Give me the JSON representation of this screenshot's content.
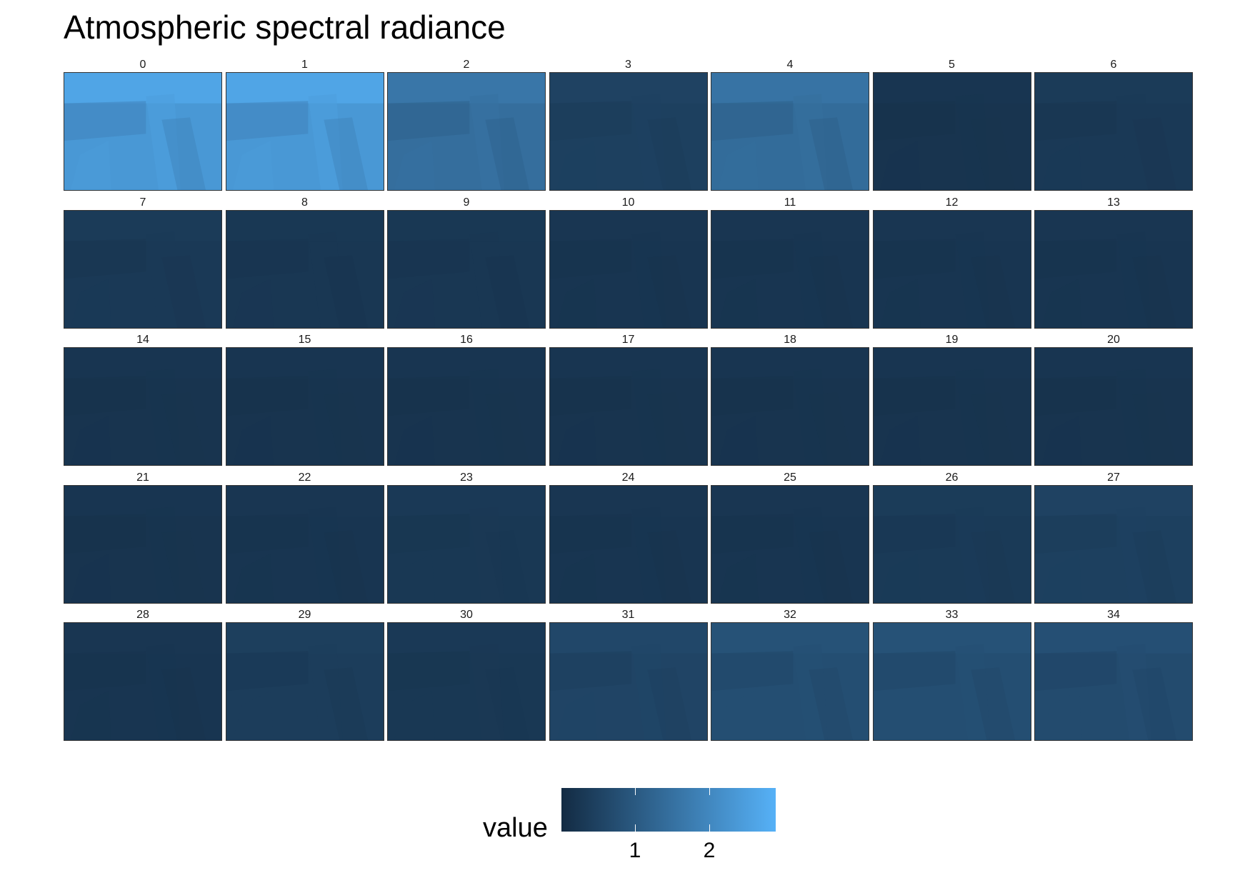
{
  "chart_data": {
    "type": "heatmap",
    "title": "Atmospheric spectral radiance",
    "panel_layout": {
      "columns": 7,
      "rows": 5
    },
    "panels": [
      {
        "label": "0",
        "level": 2.35
      },
      {
        "label": "1",
        "level": 2.35
      },
      {
        "label": "2",
        "level": 1.45
      },
      {
        "label": "3",
        "level": 0.45
      },
      {
        "label": "4",
        "level": 1.4
      },
      {
        "label": "5",
        "level": 0.2
      },
      {
        "label": "6",
        "level": 0.3
      },
      {
        "label": "7",
        "level": 0.3
      },
      {
        "label": "8",
        "level": 0.25
      },
      {
        "label": "9",
        "level": 0.25
      },
      {
        "label": "10",
        "level": 0.22
      },
      {
        "label": "11",
        "level": 0.22
      },
      {
        "label": "12",
        "level": 0.22
      },
      {
        "label": "13",
        "level": 0.22
      },
      {
        "label": "14",
        "level": 0.2
      },
      {
        "label": "15",
        "level": 0.2
      },
      {
        "label": "16",
        "level": 0.2
      },
      {
        "label": "17",
        "level": 0.2
      },
      {
        "label": "18",
        "level": 0.2
      },
      {
        "label": "19",
        "level": 0.2
      },
      {
        "label": "20",
        "level": 0.2
      },
      {
        "label": "21",
        "level": 0.2
      },
      {
        "label": "22",
        "level": 0.22
      },
      {
        "label": "23",
        "level": 0.28
      },
      {
        "label": "24",
        "level": 0.22
      },
      {
        "label": "25",
        "level": 0.22
      },
      {
        "label": "26",
        "level": 0.32
      },
      {
        "label": "27",
        "level": 0.45
      },
      {
        "label": "28",
        "level": 0.22
      },
      {
        "label": "29",
        "level": 0.38
      },
      {
        "label": "30",
        "level": 0.28
      },
      {
        "label": "31",
        "level": 0.55
      },
      {
        "label": "32",
        "level": 0.75
      },
      {
        "label": "33",
        "level": 0.75
      },
      {
        "label": "34",
        "level": 0.7
      }
    ],
    "legend": {
      "title": "value",
      "position": "bottom",
      "range": [
        0,
        2.9
      ],
      "ticks": [
        1,
        2
      ],
      "colors": [
        "#132b43",
        "#56b1f7"
      ]
    }
  }
}
